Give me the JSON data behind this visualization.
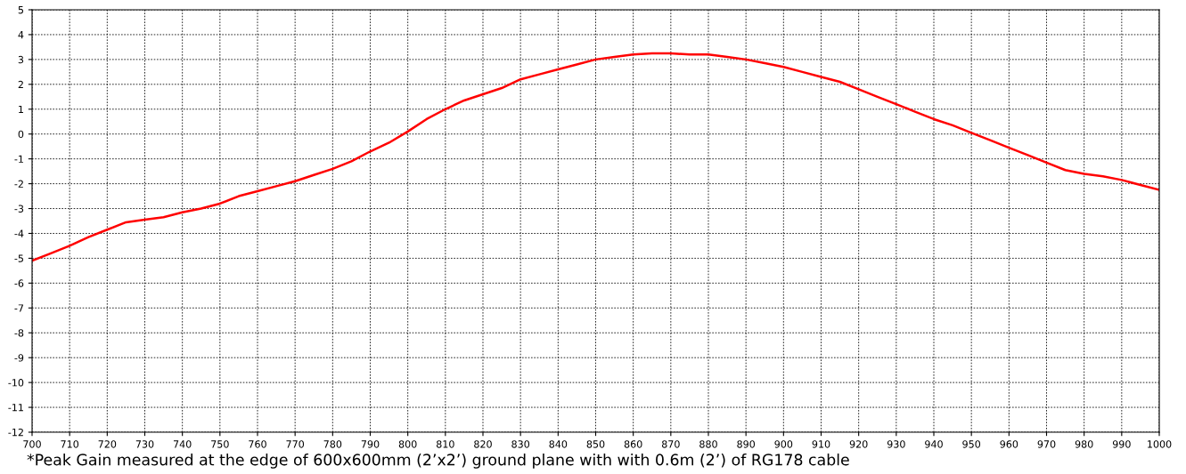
{
  "chart_data": {
    "type": "line",
    "x": [
      700,
      705,
      710,
      715,
      720,
      725,
      730,
      735,
      740,
      745,
      750,
      755,
      760,
      765,
      770,
      775,
      780,
      785,
      790,
      795,
      800,
      805,
      810,
      815,
      820,
      825,
      830,
      835,
      840,
      845,
      850,
      855,
      860,
      865,
      870,
      875,
      880,
      885,
      890,
      895,
      900,
      905,
      910,
      915,
      920,
      925,
      930,
      935,
      940,
      945,
      950,
      955,
      960,
      965,
      970,
      975,
      980,
      985,
      990,
      995,
      1000
    ],
    "series": [
      {
        "color": "#ff0000",
        "values": [
          -5.1,
          -4.8,
          -4.5,
          -4.15,
          -3.85,
          -3.55,
          -3.45,
          -3.35,
          -3.15,
          -3.0,
          -2.8,
          -2.5,
          -2.3,
          -2.1,
          -1.9,
          -1.65,
          -1.4,
          -1.1,
          -0.7,
          -0.35,
          0.1,
          0.6,
          1.0,
          1.35,
          1.6,
          1.85,
          2.2,
          2.4,
          2.6,
          2.8,
          3.0,
          3.1,
          3.2,
          3.25,
          3.25,
          3.2,
          3.2,
          3.1,
          3.0,
          2.85,
          2.7,
          2.5,
          2.3,
          2.1,
          1.8,
          1.5,
          1.2,
          0.9,
          0.6,
          0.35,
          0.05,
          -0.25,
          -0.55,
          -0.85,
          -1.15,
          -1.45,
          -1.6,
          -1.7,
          -1.85,
          -2.05,
          -2.25
        ]
      }
    ],
    "xlim": [
      700,
      1000
    ],
    "xticks": [
      700,
      710,
      720,
      730,
      740,
      750,
      760,
      770,
      780,
      790,
      800,
      810,
      820,
      830,
      840,
      850,
      860,
      870,
      880,
      890,
      900,
      910,
      920,
      930,
      940,
      950,
      960,
      970,
      980,
      990,
      1000
    ],
    "ylim": [
      -12,
      5
    ],
    "yticks": [
      -12,
      -11,
      -10,
      -9,
      -8,
      -7,
      -6,
      -5,
      -4,
      -3,
      -2,
      -1,
      0,
      1,
      2,
      3,
      4,
      5
    ],
    "grid": true,
    "legend": false,
    "annotations": [
      "*Peak Gain measured at the edge of 600x600mm (2’x2’) ground plane with with 0.6m (2’) of RG178 cable"
    ]
  }
}
